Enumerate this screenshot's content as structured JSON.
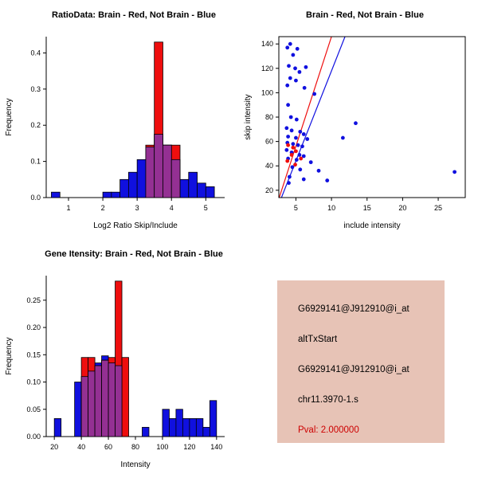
{
  "colors": {
    "blue": "#1010DF",
    "red": "#EE0E0E",
    "overlap": "#943093",
    "info_bg": "#E7C3B6",
    "pval": "#CD0000",
    "axis": "#000000"
  },
  "info_panel": {
    "lines": [
      "G6929141@J912910@i_at",
      "altTxStart",
      "G6929141@J912910@i_at",
      "chr11.3970-1.s"
    ],
    "pval_line": "Pval: 2.000000"
  },
  "chart_data": [
    {
      "id": "ratio_hist",
      "type": "bar",
      "title": "RatioData: Brain - Red, Not Brain - Blue",
      "xlabel": "Log2 Ratio Skip/Include",
      "ylabel": "Frequency",
      "xlim": [
        0.35,
        5.55
      ],
      "ylim": [
        0,
        0.445
      ],
      "xticks": [
        1,
        2,
        3,
        4,
        5
      ],
      "xtick_labels": [
        "1",
        "2",
        "3",
        "4",
        "5"
      ],
      "yticks": [
        0,
        0.1,
        0.2,
        0.3,
        0.4
      ],
      "ytick_labels": [
        "0.0",
        "0.1",
        "0.2",
        "0.3",
        "0.4"
      ],
      "bin_width": 0.25,
      "series": [
        {
          "name": "Not Brain",
          "color": "blue",
          "bins": [
            [
              0.5,
              0.015
            ],
            [
              2.0,
              0.015
            ],
            [
              2.25,
              0.015
            ],
            [
              2.5,
              0.05
            ],
            [
              2.75,
              0.07
            ],
            [
              3.0,
              0.105
            ],
            [
              3.25,
              0.14
            ],
            [
              3.5,
              0.175
            ],
            [
              3.75,
              0.145
            ],
            [
              4.0,
              0.105
            ],
            [
              4.25,
              0.05
            ],
            [
              4.5,
              0.07
            ],
            [
              4.75,
              0.04
            ],
            [
              5.0,
              0.03
            ]
          ]
        },
        {
          "name": "Brain",
          "color": "red",
          "bins": [
            [
              3.25,
              0.145
            ],
            [
              3.5,
              0.43
            ],
            [
              3.75,
              0.145
            ],
            [
              4.0,
              0.145
            ]
          ]
        }
      ]
    },
    {
      "id": "scatter",
      "type": "scatter",
      "title": "Brain - Red, Not Brain - Blue",
      "xlabel": "include intensity",
      "ylabel": "skip intensity",
      "xlim": [
        2.6,
        28.8
      ],
      "ylim": [
        14,
        146
      ],
      "xticks": [
        5,
        10,
        15,
        20,
        25
      ],
      "xtick_labels": [
        "5",
        "10",
        "15",
        "20",
        "25"
      ],
      "yticks": [
        20,
        40,
        60,
        80,
        100,
        120,
        140
      ],
      "ytick_labels": [
        "20",
        "40",
        "60",
        "80",
        "100",
        "120",
        "140"
      ],
      "series": [
        {
          "name": "Not Brain",
          "color": "blue",
          "points": [
            [
              4.2,
              140
            ],
            [
              3.8,
              137
            ],
            [
              5.2,
              136
            ],
            [
              4.6,
              131
            ],
            [
              4.0,
              122
            ],
            [
              4.9,
              120
            ],
            [
              6.4,
              121
            ],
            [
              5.5,
              117
            ],
            [
              4.2,
              112
            ],
            [
              5.0,
              110
            ],
            [
              3.8,
              106
            ],
            [
              6.2,
              104
            ],
            [
              7.6,
              99
            ],
            [
              3.9,
              90
            ],
            [
              4.3,
              80
            ],
            [
              5.1,
              78
            ],
            [
              13.4,
              75
            ],
            [
              3.7,
              71
            ],
            [
              4.4,
              69
            ],
            [
              5.6,
              68
            ],
            [
              6.1,
              66
            ],
            [
              3.9,
              64
            ],
            [
              5.0,
              63
            ],
            [
              6.6,
              62
            ],
            [
              11.6,
              63
            ],
            [
              3.8,
              59
            ],
            [
              4.6,
              58
            ],
            [
              5.3,
              57
            ],
            [
              5.9,
              56
            ],
            [
              3.7,
              53
            ],
            [
              4.4,
              51
            ],
            [
              5.5,
              49
            ],
            [
              6.1,
              48
            ],
            [
              3.9,
              46
            ],
            [
              5.1,
              45
            ],
            [
              7.1,
              43
            ],
            [
              4.5,
              39
            ],
            [
              5.6,
              37
            ],
            [
              8.2,
              36
            ],
            [
              27.3,
              35
            ],
            [
              4.1,
              31
            ],
            [
              6.1,
              29
            ],
            [
              9.4,
              28
            ],
            [
              4.0,
              26
            ]
          ]
        },
        {
          "name": "Brain",
          "color": "red",
          "points": [
            [
              3.9,
              57
            ],
            [
              4.6,
              55
            ],
            [
              5.0,
              52
            ],
            [
              4.4,
              49
            ],
            [
              5.7,
              46
            ],
            [
              3.8,
              44
            ],
            [
              4.9,
              41
            ]
          ]
        }
      ],
      "fit_lines": [
        {
          "name": "brain-fit",
          "color": "red",
          "p1": [
            2.6,
            13
          ],
          "p2": [
            10.0,
            146
          ]
        },
        {
          "name": "notbrain-fit",
          "color": "blue",
          "p1": [
            2.9,
            13
          ],
          "p2": [
            11.9,
            146
          ]
        }
      ]
    },
    {
      "id": "gene_hist",
      "type": "bar",
      "title": "Gene Itensity: Brain - Red, Not Brain - Blue",
      "xlabel": "Intensity",
      "ylabel": "Frequency",
      "xlim": [
        14,
        146
      ],
      "ylim": [
        0,
        0.295
      ],
      "xticks": [
        20,
        40,
        60,
        80,
        100,
        120,
        140
      ],
      "xtick_labels": [
        "20",
        "40",
        "60",
        "80",
        "100",
        "120",
        "140"
      ],
      "yticks": [
        0,
        0.05,
        0.1,
        0.15,
        0.2,
        0.25
      ],
      "ytick_labels": [
        "0.00",
        "0.05",
        "0.10",
        "0.15",
        "0.20",
        "0.25"
      ],
      "bin_width": 5,
      "series": [
        {
          "name": "Not Brain",
          "color": "blue",
          "bins": [
            [
              20,
              0.033
            ],
            [
              35,
              0.1
            ],
            [
              40,
              0.11
            ],
            [
              45,
              0.12
            ],
            [
              50,
              0.135
            ],
            [
              55,
              0.148
            ],
            [
              60,
              0.135
            ],
            [
              65,
              0.13
            ],
            [
              85,
              0.017
            ],
            [
              100,
              0.05
            ],
            [
              105,
              0.033
            ],
            [
              110,
              0.05
            ],
            [
              115,
              0.033
            ],
            [
              120,
              0.033
            ],
            [
              125,
              0.033
            ],
            [
              130,
              0.017
            ],
            [
              135,
              0.066
            ]
          ]
        },
        {
          "name": "Brain",
          "color": "red",
          "bins": [
            [
              40,
              0.145
            ],
            [
              45,
              0.145
            ],
            [
              50,
              0.13
            ],
            [
              55,
              0.14
            ],
            [
              60,
              0.145
            ],
            [
              65,
              0.285
            ],
            [
              70,
              0.145
            ]
          ]
        }
      ]
    }
  ]
}
